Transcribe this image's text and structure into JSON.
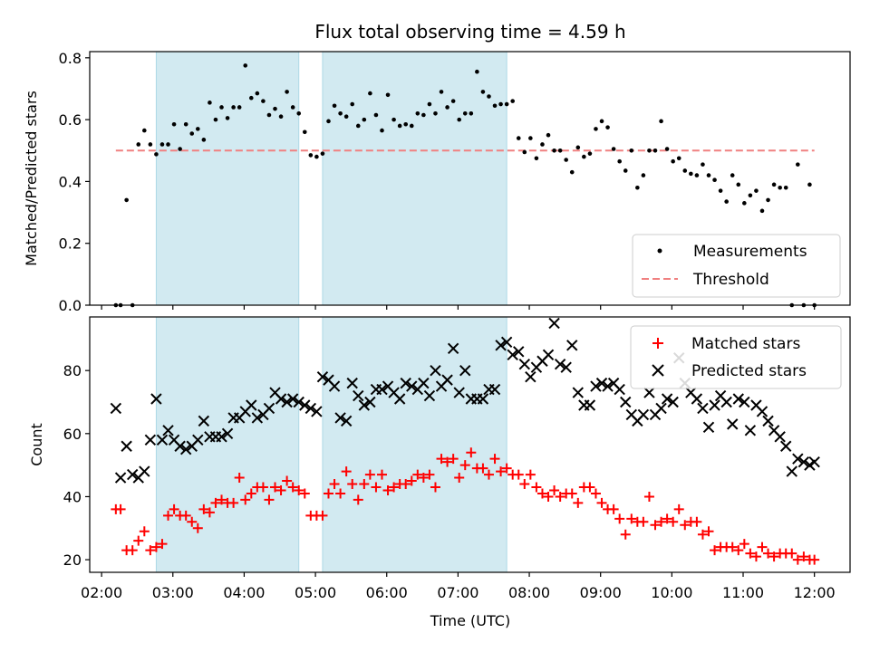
{
  "figure": {
    "title": "Flux total observing time = 4.59 h",
    "colors": {
      "shade": "#add8e6",
      "measurement": "#000000",
      "threshold": "#f08080",
      "matched": "#ff0000",
      "predicted": "#000000"
    }
  },
  "chart_data": [
    {
      "type": "scatter",
      "panel": "top",
      "title": "Flux total observing time = 4.59 h",
      "xlabel": "",
      "ylabel": "Matched/Predicted stars",
      "xlim": [
        "01:50",
        "12:30"
      ],
      "ylim": [
        0,
        0.82
      ],
      "yticks": [
        0.0,
        0.2,
        0.4,
        0.6,
        0.8
      ],
      "ytick_labels": [
        "0.0",
        "0.2",
        "0.4",
        "0.6",
        "0.8"
      ],
      "xticks": [
        "02:00",
        "03:00",
        "04:00",
        "05:00",
        "06:00",
        "07:00",
        "08:00",
        "09:00",
        "10:00",
        "11:00",
        "12:00"
      ],
      "shaded_intervals": [
        [
          "02:46",
          "04:46"
        ],
        [
          "05:06",
          "07:41"
        ]
      ],
      "legend_position": "lower right",
      "threshold": {
        "name": "Threshold",
        "value": 0.5,
        "x_range": [
          "02:12",
          "12:00"
        ],
        "style": "dashed"
      },
      "series": [
        {
          "name": "Measurements",
          "x": [
            "02:12",
            "02:16",
            "02:21",
            "02:26",
            "02:31",
            "02:36",
            "02:41",
            "02:46",
            "02:51",
            "02:56",
            "03:01",
            "03:06",
            "03:11",
            "03:16",
            "03:21",
            "03:26",
            "03:31",
            "03:36",
            "03:41",
            "03:46",
            "03:51",
            "03:56",
            "04:01",
            "04:06",
            "04:11",
            "04:16",
            "04:21",
            "04:26",
            "04:31",
            "04:36",
            "04:41",
            "04:46",
            "04:51",
            "04:56",
            "05:01",
            "05:06",
            "05:11",
            "05:16",
            "05:21",
            "05:26",
            "05:31",
            "05:36",
            "05:41",
            "05:46",
            "05:51",
            "05:56",
            "06:01",
            "06:06",
            "06:11",
            "06:16",
            "06:21",
            "06:26",
            "06:31",
            "06:36",
            "06:41",
            "06:46",
            "06:51",
            "06:56",
            "07:01",
            "07:06",
            "07:11",
            "07:16",
            "07:21",
            "07:26",
            "07:31",
            "07:36",
            "07:41",
            "07:46",
            "07:51",
            "07:56",
            "08:01",
            "08:06",
            "08:11",
            "08:16",
            "08:21",
            "08:26",
            "08:31",
            "08:36",
            "08:41",
            "08:46",
            "08:51",
            "08:56",
            "09:01",
            "09:06",
            "09:11",
            "09:16",
            "09:21",
            "09:26",
            "09:31",
            "09:36",
            "09:41",
            "09:46",
            "09:51",
            "09:56",
            "10:01",
            "10:06",
            "10:11",
            "10:16",
            "10:21",
            "10:26",
            "10:31",
            "10:36",
            "10:41",
            "10:46",
            "10:51",
            "10:56",
            "11:01",
            "11:06",
            "11:11",
            "11:16",
            "11:21",
            "11:26",
            "11:31",
            "11:36",
            "11:41",
            "11:46",
            "11:51",
            "11:56",
            "12:00"
          ],
          "y": [
            0.0,
            0.0,
            0.34,
            0.0,
            0.52,
            0.565,
            0.52,
            0.488,
            0.52,
            0.52,
            0.585,
            0.505,
            0.585,
            0.555,
            0.57,
            0.535,
            0.655,
            0.6,
            0.64,
            0.605,
            0.64,
            0.64,
            0.775,
            0.67,
            0.685,
            0.66,
            0.615,
            0.635,
            0.61,
            0.69,
            0.64,
            0.62,
            0.56,
            0.485,
            0.48,
            0.49,
            0.595,
            0.645,
            0.62,
            0.61,
            0.65,
            0.58,
            0.6,
            0.685,
            0.615,
            0.565,
            0.68,
            0.6,
            0.58,
            0.585,
            0.58,
            0.62,
            0.615,
            0.65,
            0.62,
            0.69,
            0.64,
            0.66,
            0.6,
            0.62,
            0.62,
            0.755,
            0.69,
            0.675,
            0.645,
            0.65,
            0.65,
            0.66,
            0.54,
            0.495,
            0.54,
            0.475,
            0.52,
            0.55,
            0.5,
            0.5,
            0.47,
            0.43,
            0.51,
            0.48,
            0.49,
            0.57,
            0.595,
            0.575,
            0.505,
            0.465,
            0.435,
            0.5,
            0.38,
            0.42,
            0.5,
            0.5,
            0.595,
            0.505,
            0.465,
            0.475,
            0.435,
            0.425,
            0.42,
            0.455,
            0.42,
            0.405,
            0.37,
            0.335,
            0.42,
            0.39,
            0.33,
            0.355,
            0.37,
            0.305,
            0.34,
            0.39,
            0.38,
            0.38,
            0.0,
            0.455,
            0.0,
            0.39,
            0.0
          ]
        }
      ]
    },
    {
      "type": "scatter",
      "panel": "bottom",
      "xlabel": "Time (UTC)",
      "ylabel": "Count",
      "xlim": [
        "01:50",
        "12:30"
      ],
      "ylim": [
        16,
        97
      ],
      "yticks": [
        20,
        40,
        60,
        80
      ],
      "ytick_labels": [
        "20",
        "40",
        "60",
        "80"
      ],
      "xticks": [
        "02:00",
        "03:00",
        "04:00",
        "05:00",
        "06:00",
        "07:00",
        "08:00",
        "09:00",
        "10:00",
        "11:00",
        "12:00"
      ],
      "xtick_labels": [
        "02:00",
        "03:00",
        "04:00",
        "05:00",
        "06:00",
        "07:00",
        "08:00",
        "09:00",
        "10:00",
        "11:00",
        "12:00"
      ],
      "shaded_intervals": [
        [
          "02:46",
          "04:46"
        ],
        [
          "05:06",
          "07:41"
        ]
      ],
      "legend_position": "upper right",
      "series": [
        {
          "name": "Matched stars",
          "marker": "plus",
          "x": [
            "02:12",
            "02:16",
            "02:21",
            "02:26",
            "02:31",
            "02:36",
            "02:41",
            "02:46",
            "02:51",
            "02:56",
            "03:01",
            "03:06",
            "03:11",
            "03:16",
            "03:21",
            "03:26",
            "03:31",
            "03:36",
            "03:41",
            "03:46",
            "03:51",
            "03:56",
            "04:01",
            "04:06",
            "04:11",
            "04:16",
            "04:21",
            "04:26",
            "04:31",
            "04:36",
            "04:41",
            "04:46",
            "04:51",
            "04:56",
            "05:01",
            "05:06",
            "05:11",
            "05:16",
            "05:21",
            "05:26",
            "05:31",
            "05:36",
            "05:41",
            "05:46",
            "05:51",
            "05:56",
            "06:01",
            "06:06",
            "06:11",
            "06:16",
            "06:21",
            "06:26",
            "06:31",
            "06:36",
            "06:41",
            "06:46",
            "06:51",
            "06:56",
            "07:01",
            "07:06",
            "07:11",
            "07:16",
            "07:21",
            "07:26",
            "07:31",
            "07:36",
            "07:41",
            "07:46",
            "07:51",
            "07:56",
            "08:01",
            "08:06",
            "08:11",
            "08:16",
            "08:21",
            "08:26",
            "08:31",
            "08:36",
            "08:41",
            "08:46",
            "08:51",
            "08:56",
            "09:01",
            "09:06",
            "09:11",
            "09:16",
            "09:21",
            "09:26",
            "09:31",
            "09:36",
            "09:41",
            "09:46",
            "09:51",
            "09:56",
            "10:01",
            "10:06",
            "10:11",
            "10:16",
            "10:21",
            "10:26",
            "10:31",
            "10:36",
            "10:41",
            "10:46",
            "10:51",
            "10:56",
            "11:01",
            "11:06",
            "11:11",
            "11:16",
            "11:21",
            "11:26",
            "11:31",
            "11:36",
            "11:41",
            "11:46",
            "11:51",
            "11:56",
            "12:00"
          ],
          "y": [
            36,
            36,
            23,
            23,
            26,
            29,
            23,
            24,
            25,
            34,
            36,
            34,
            34,
            32,
            30,
            36,
            35,
            38,
            39,
            38,
            38,
            46,
            39,
            41,
            43,
            43,
            39,
            43,
            42,
            45,
            43,
            42,
            41,
            34,
            34,
            34,
            41,
            44,
            41,
            48,
            44,
            39,
            44,
            47,
            43,
            47,
            42,
            43,
            44,
            44,
            45,
            47,
            46,
            47,
            43,
            52,
            51,
            52,
            46,
            50,
            54,
            49,
            49,
            47,
            52,
            48,
            49,
            47,
            47,
            44,
            47,
            43,
            41,
            40,
            42,
            40,
            41,
            41,
            38,
            43,
            43,
            41,
            38,
            36,
            36,
            33,
            28,
            33,
            32,
            32,
            40,
            31,
            32,
            33,
            32,
            36,
            31,
            32,
            32,
            28,
            29,
            23,
            24,
            24,
            24,
            23,
            25,
            22,
            21,
            24,
            22,
            21,
            22,
            22,
            22,
            20,
            21,
            20,
            20
          ]
        },
        {
          "name": "Predicted stars",
          "marker": "x",
          "x": [
            "02:12",
            "02:16",
            "02:21",
            "02:26",
            "02:31",
            "02:36",
            "02:41",
            "02:46",
            "02:51",
            "02:56",
            "03:01",
            "03:06",
            "03:11",
            "03:16",
            "03:21",
            "03:26",
            "03:31",
            "03:36",
            "03:41",
            "03:46",
            "03:51",
            "03:56",
            "04:01",
            "04:06",
            "04:11",
            "04:16",
            "04:21",
            "04:26",
            "04:31",
            "04:36",
            "04:41",
            "04:46",
            "04:51",
            "04:56",
            "05:01",
            "05:06",
            "05:11",
            "05:16",
            "05:21",
            "05:26",
            "05:31",
            "05:36",
            "05:41",
            "05:46",
            "05:51",
            "05:56",
            "06:01",
            "06:06",
            "06:11",
            "06:16",
            "06:21",
            "06:26",
            "06:31",
            "06:36",
            "06:41",
            "06:46",
            "06:51",
            "06:56",
            "07:01",
            "07:06",
            "07:11",
            "07:16",
            "07:21",
            "07:26",
            "07:31",
            "07:36",
            "07:41",
            "07:46",
            "07:51",
            "07:56",
            "08:01",
            "08:06",
            "08:11",
            "08:16",
            "08:21",
            "08:26",
            "08:31",
            "08:36",
            "08:41",
            "08:46",
            "08:51",
            "08:56",
            "09:01",
            "09:06",
            "09:11",
            "09:16",
            "09:21",
            "09:26",
            "09:31",
            "09:36",
            "09:41",
            "09:46",
            "09:51",
            "09:56",
            "10:01",
            "10:06",
            "10:11",
            "10:16",
            "10:21",
            "10:26",
            "10:31",
            "10:36",
            "10:41",
            "10:46",
            "10:51",
            "10:56",
            "11:01",
            "11:06",
            "11:11",
            "11:16",
            "11:21",
            "11:26",
            "11:31",
            "11:36",
            "11:41",
            "11:46",
            "11:51",
            "11:56",
            "12:00"
          ],
          "y": [
            68,
            46,
            56,
            47,
            46,
            48,
            58,
            71,
            58,
            61,
            58,
            56,
            55,
            56,
            58,
            64,
            59,
            59,
            59,
            60,
            65,
            65,
            67,
            69,
            65,
            66,
            68,
            73,
            71,
            70,
            71,
            70,
            69,
            68,
            67,
            78,
            77,
            75,
            65,
            64,
            76,
            72,
            69,
            70,
            74,
            74,
            75,
            73,
            71,
            76,
            75,
            74,
            76,
            72,
            80,
            75,
            77,
            87,
            73,
            80,
            71,
            71,
            71,
            74,
            74,
            88,
            89,
            85,
            86,
            82,
            78,
            81,
            83,
            85,
            95,
            82,
            81,
            88,
            73,
            69,
            69,
            75,
            76,
            75,
            76,
            74,
            70,
            66,
            64,
            66,
            73,
            66,
            68,
            71,
            70,
            84,
            76,
            73,
            71,
            68,
            62,
            69,
            72,
            70,
            63,
            71,
            70,
            61,
            69,
            67,
            64,
            61,
            59,
            56,
            48,
            52,
            51,
            50,
            51
          ]
        }
      ]
    }
  ]
}
